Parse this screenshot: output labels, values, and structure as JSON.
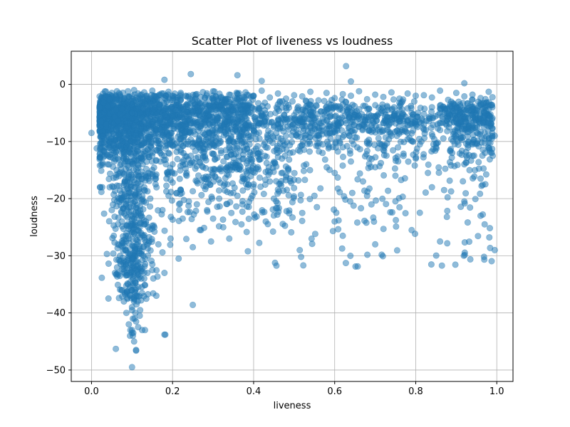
{
  "chart_data": {
    "type": "scatter",
    "title": "Scatter Plot of liveness vs loudness",
    "xlabel": "liveness",
    "ylabel": "loudness",
    "xlim": [
      -0.05,
      1.04
    ],
    "ylim": [
      -52,
      5.8
    ],
    "xticks": [
      0.0,
      0.2,
      0.4,
      0.6,
      0.8,
      1.0
    ],
    "xtick_labels": [
      "0.0",
      "0.2",
      "0.4",
      "0.6",
      "0.8",
      "1.0"
    ],
    "yticks": [
      -50,
      -40,
      -30,
      -20,
      -10,
      0
    ],
    "ytick_labels": [
      "−50",
      "−40",
      "−30",
      "−20",
      "−10",
      "0"
    ],
    "grid": true,
    "marker_color": "#1f77b4",
    "marker_alpha": 0.5,
    "series": [
      {
        "name": "",
        "x": [
          0.0,
          0.013,
          0.02,
          0.024,
          0.028,
          0.03,
          0.032,
          0.036,
          0.04,
          0.042,
          0.045,
          0.048,
          0.05,
          0.052,
          0.055,
          0.055,
          0.058,
          0.06,
          0.06,
          0.062,
          0.065,
          0.066,
          0.068,
          0.07,
          0.072,
          0.074,
          0.075,
          0.078,
          0.08,
          0.082,
          0.083,
          0.085,
          0.086,
          0.088,
          0.09,
          0.09,
          0.092,
          0.093,
          0.094,
          0.095,
          0.096,
          0.097,
          0.098,
          0.099,
          0.1,
          0.1,
          0.101,
          0.102,
          0.103,
          0.104,
          0.105,
          0.106,
          0.107,
          0.108,
          0.109,
          0.11,
          0.11,
          0.111,
          0.112,
          0.113,
          0.114,
          0.115,
          0.116,
          0.117,
          0.118,
          0.119,
          0.12,
          0.122,
          0.124,
          0.126,
          0.128,
          0.13,
          0.132,
          0.134,
          0.136,
          0.138,
          0.14,
          0.142,
          0.145,
          0.148,
          0.15,
          0.152,
          0.155,
          0.158,
          0.16,
          0.165,
          0.17,
          0.175,
          0.18,
          0.185,
          0.19,
          0.195,
          0.2,
          0.205,
          0.21,
          0.215,
          0.22,
          0.225,
          0.23,
          0.235,
          0.24,
          0.245,
          0.25,
          0.255,
          0.26,
          0.265,
          0.27,
          0.275,
          0.28,
          0.285,
          0.29,
          0.295,
          0.3,
          0.305,
          0.31,
          0.315,
          0.32,
          0.325,
          0.33,
          0.335,
          0.34,
          0.345,
          0.35,
          0.355,
          0.36,
          0.365,
          0.37,
          0.375,
          0.38,
          0.385,
          0.39,
          0.395,
          0.4,
          0.41,
          0.42,
          0.43,
          0.44,
          0.45,
          0.46,
          0.47,
          0.48,
          0.49,
          0.5,
          0.51,
          0.52,
          0.53,
          0.54,
          0.55,
          0.56,
          0.57,
          0.58,
          0.59,
          0.6,
          0.61,
          0.62,
          0.63,
          0.64,
          0.65,
          0.66,
          0.67,
          0.68,
          0.69,
          0.7,
          0.71,
          0.72,
          0.73,
          0.74,
          0.75,
          0.76,
          0.77,
          0.78,
          0.79,
          0.8,
          0.81,
          0.82,
          0.83,
          0.84,
          0.85,
          0.86,
          0.87,
          0.88,
          0.89,
          0.9,
          0.91,
          0.92,
          0.93,
          0.94,
          0.95,
          0.96,
          0.97,
          0.98,
          0.99,
          0.995,
          0.05,
          0.06,
          0.07,
          0.08,
          0.09,
          0.1,
          0.105,
          0.11,
          0.115,
          0.12,
          0.13,
          0.14,
          0.15,
          0.16,
          0.17,
          0.18,
          0.19,
          0.2,
          0.22,
          0.24,
          0.26,
          0.28,
          0.3,
          0.32,
          0.34,
          0.36,
          0.38,
          0.4,
          0.42,
          0.44,
          0.46,
          0.48,
          0.5,
          0.52,
          0.54,
          0.56,
          0.58,
          0.6,
          0.62,
          0.64,
          0.66,
          0.68,
          0.7,
          0.72,
          0.74,
          0.76,
          0.78,
          0.8,
          0.82,
          0.84,
          0.86,
          0.88,
          0.9,
          0.92,
          0.94,
          0.96,
          0.98,
          0.06,
          0.07,
          0.08,
          0.085,
          0.09,
          0.095,
          0.1,
          0.105,
          0.11,
          0.115,
          0.12,
          0.125,
          0.13,
          0.14,
          0.15,
          0.16,
          0.17,
          0.18,
          0.2,
          0.23,
          0.25,
          0.28,
          0.31,
          0.34,
          0.37,
          0.4,
          0.43,
          0.46,
          0.5,
          0.54,
          0.58,
          0.62,
          0.66,
          0.7,
          0.74,
          0.78,
          0.82,
          0.86,
          0.9,
          0.94,
          0.97,
          0.985,
          0.08,
          0.085,
          0.09,
          0.092,
          0.095,
          0.098,
          0.1,
          0.102,
          0.105,
          0.108,
          0.11,
          0.112,
          0.115,
          0.12,
          0.125,
          0.13,
          0.14,
          0.15,
          0.17,
          0.19,
          0.22,
          0.26,
          0.3,
          0.35,
          0.4,
          0.45,
          0.52,
          0.6,
          0.68,
          0.76,
          0.84,
          0.92,
          0.96,
          0.09,
          0.095,
          0.1,
          0.102,
          0.105,
          0.108,
          0.11,
          0.112,
          0.115,
          0.12,
          0.13,
          0.15,
          0.18,
          0.25,
          0.34,
          0.43,
          0.62,
          0.7,
          0.79,
          0.86,
          0.97,
          0.995,
          0.095,
          0.1,
          0.105,
          0.11,
          0.125,
          0.182,
          0.065,
          0.11,
          0.1,
          0.628,
          0.64,
          0.18,
          0.36,
          0.245,
          0.42,
          0.92,
          0.04,
          0.045,
          0.05,
          0.055,
          0.06,
          0.065,
          0.07,
          0.075,
          0.08,
          0.085,
          0.09,
          0.095,
          0.1,
          0.11,
          0.12,
          0.13,
          0.14,
          0.15,
          0.16,
          0.17,
          0.18,
          0.19,
          0.2,
          0.21,
          0.22,
          0.23,
          0.24,
          0.25,
          0.26,
          0.27,
          0.28,
          0.29,
          0.3,
          0.31,
          0.32,
          0.33,
          0.34,
          0.35,
          0.36,
          0.37,
          0.38,
          0.39,
          0.4,
          0.42,
          0.44,
          0.46,
          0.48,
          0.5,
          0.52,
          0.54,
          0.56,
          0.58,
          0.6,
          0.62,
          0.64,
          0.66,
          0.68,
          0.7,
          0.72,
          0.74,
          0.76,
          0.78,
          0.8,
          0.82,
          0.84,
          0.86,
          0.88,
          0.9,
          0.92,
          0.94,
          0.96,
          0.98
        ],
        "y": [
          -8.5,
          -11.2,
          -4.0,
          -6.5,
          -9.0,
          -3.2,
          -12.5,
          -7.0,
          -14.0,
          -5.5,
          -18.0,
          -9.5,
          -22.0,
          -3.5,
          -26.5,
          -12.0,
          -33.0,
          -8.0,
          -46.3,
          -15.0,
          -28.0,
          -5.0,
          -20.0,
          -31.0,
          -11.0,
          -36.0,
          -24.0,
          -4.5,
          -38.0,
          -17.0,
          -29.0,
          -9.0,
          -40.0,
          -22.0,
          -35.0,
          -13.5,
          -42.0,
          -27.0,
          -6.0,
          -37.0,
          -43.0,
          -19.0,
          -31.5,
          -10.0,
          -49.5,
          -39.0,
          -24.5,
          -14.0,
          -43.5,
          -33.5,
          -7.5,
          -41.0,
          -28.5,
          -20.5,
          -36.5,
          -46.5,
          -12.5,
          -38.5,
          -25.5,
          -31.0,
          -9.5,
          -34.0,
          -22.5,
          -16.0,
          -29.5,
          -40.5,
          -5.0,
          -26.0,
          -35.5,
          -13.0,
          -30.0,
          -18.5,
          -43.0,
          -24.0,
          -8.5,
          -33.0,
          -15.5,
          -27.5,
          -20.0,
          -11.0,
          -32.5,
          -6.5,
          -25.0,
          -17.5,
          -37.0,
          -28.0,
          -12.0,
          -22.0,
          -43.8,
          -16.5,
          -9.0,
          -27.0,
          -14.0,
          -5.5,
          -19.0,
          -30.5,
          -11.5,
          -23.5,
          -7.0,
          -16.0,
          -20.5,
          -12.5,
          -38.6,
          -3.5,
          -17.0,
          -9.5,
          -25.5,
          -14.5,
          -6.0,
          -22.0,
          -11.0,
          -27.5,
          -8.0,
          -15.0,
          -3.0,
          -20.0,
          -12.0,
          -25.0,
          -6.5,
          -17.5,
          -10.0,
          -22.5,
          -4.5,
          -14.5,
          -19.5,
          -9.0,
          -24.5,
          -13.0,
          -6.0,
          -18.0,
          -10.5,
          -4.0,
          -8.0,
          -14.5,
          -5.5,
          -11.0,
          -17.0,
          -7.5,
          -3.5,
          -13.0,
          -9.0,
          -16.5,
          -6.0,
          -11.5,
          -4.5,
          -14.0,
          -8.5,
          -19.5,
          -6.5,
          -12.0,
          -5.0,
          -9.5,
          -15.5,
          -7.0,
          -11.0,
          -4.0,
          -13.5,
          -8.0,
          -6.0,
          -17.0,
          -10.0,
          -5.5,
          -14.5,
          -7.5,
          -11.5,
          -4.5,
          -9.0,
          -16.0,
          -6.5,
          -12.5,
          -8.5,
          -5.0,
          -13.0,
          -10.5,
          -7.0,
          -15.5,
          -4.0,
          -11.0,
          -8.0,
          -18.5,
          -6.0,
          -12.0,
          -9.5,
          -5.0,
          -14.0,
          -7.5,
          -10.5,
          -4.5,
          -16.5,
          -8.5,
          -6.0,
          -12.5,
          -9.0,
          -1.5,
          -2.2,
          -1.8,
          -2.5,
          -1.2,
          -2.0,
          -1.0,
          -2.8,
          -1.6,
          -2.3,
          -1.4,
          -2.6,
          -1.1,
          -2.1,
          -1.9,
          -2.4,
          -1.3,
          -2.7,
          -1.5,
          -2.0,
          -1.7,
          -2.4,
          -1.2,
          -2.2,
          -1.8,
          -2.6,
          -1.4,
          -2.0,
          -1.1,
          -2.3,
          -1.6,
          -2.5,
          -1.9,
          -2.1,
          -1.3,
          -2.8,
          -1.5,
          -2.4,
          -1.7,
          -2.0,
          -1.2,
          -2.6,
          -1.8,
          -2.2,
          -1.4,
          -2.5,
          -1.6,
          -2.0,
          -1.9,
          -2.3,
          -1.1,
          -2.7,
          -1.5,
          -2.1,
          -1.8,
          -2.4,
          -1.3,
          -4.5,
          -5.2,
          -6.0,
          -4.8,
          -5.5,
          -6.8,
          -5.0,
          -7.2,
          -6.2,
          -4.3,
          -7.8,
          -5.8,
          -6.5,
          -4.9,
          -7.0,
          -5.3,
          -6.1,
          -7.5,
          -5.6,
          -6.4,
          -4.7,
          -7.1,
          -5.9,
          -6.6,
          -4.4,
          -7.3,
          -5.1,
          -6.9,
          -5.4,
          -7.6,
          -6.3,
          -4.6,
          -7.4,
          -5.7,
          -6.7,
          -4.2,
          -7.9,
          -5.0,
          -6.0,
          -7.2,
          -5.5,
          -6.8,
          -18.5,
          -23.0,
          -26.5,
          -30.0,
          -33.5,
          -36.0,
          -39.5,
          -41.0,
          -37.5,
          -34.5,
          -31.0,
          -28.0,
          -25.5,
          -22.0,
          -20.5,
          -18.0,
          -16.5,
          -15.0,
          -13.5,
          -12.0,
          -18.5,
          -21.0,
          -23.5,
          -19.0,
          -17.5,
          -20.0,
          -22.5,
          -24.0,
          -19.5,
          -21.5,
          -18.0,
          -20.5,
          -23.0,
          -29.5,
          -35.5,
          -43.0,
          -44.0,
          -38.0,
          -40.0,
          -41.5,
          -37.0,
          -42.5,
          -39.5,
          -34.0,
          -31.5,
          -33.0,
          -28.5,
          -27.0,
          -24.0,
          -26.5,
          -28.0,
          -25.5,
          -27.5,
          -24.5,
          -29.0,
          -44.0,
          -43.5,
          -45.0,
          -46.6,
          -43.0,
          -43.8,
          -33.0,
          -37.0,
          -30.5,
          3.2,
          0.5,
          0.8,
          1.6,
          1.8,
          0.6,
          0.2,
          -3.8,
          -5.1,
          -8.2,
          -10.5,
          -2.9,
          -6.4,
          -9.7,
          -4.3,
          -12.1,
          -7.6,
          -3.1,
          -11.4,
          -5.9,
          -8.8,
          -2.6,
          -10.2,
          -6.9,
          -4.7,
          -13.3,
          -7.9,
          -3.4,
          -9.1,
          -5.3,
          -11.8,
          -2.8,
          -8.4,
          -6.1,
          -10.9,
          -4.0,
          -7.3,
          -12.6,
          -3.6,
          -9.4,
          -5.7,
          -8.0,
          -2.7,
          -11.1,
          -6.6,
          -4.5,
          -10.0,
          -7.1,
          -3.3,
          -8.6,
          -5.5,
          -9.9,
          -6.3,
          -4.1,
          -7.7,
          -10.6,
          -5.0,
          -8.9,
          -3.9,
          -6.8,
          -9.2,
          -4.8,
          -7.4,
          -10.3,
          -5.6,
          -8.1,
          -6.2,
          -4.4,
          -9.6,
          -7.0,
          -5.2,
          -8.7,
          -3.7,
          -6.0,
          -9.0,
          -7.8,
          -5.4,
          -8.3,
          -6.7
        ]
      }
    ]
  }
}
